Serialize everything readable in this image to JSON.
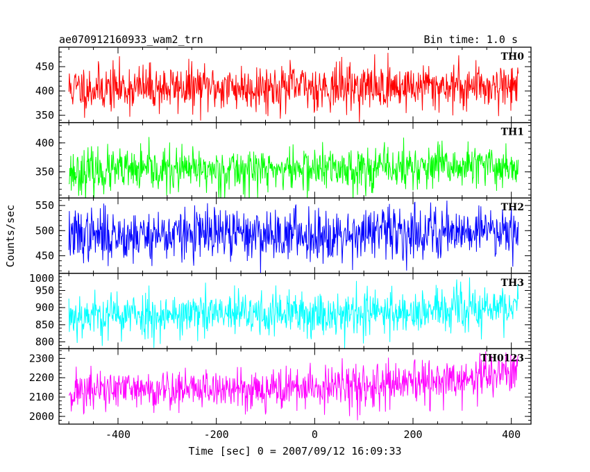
{
  "chart_data": {
    "type": "line",
    "title_left": "ae070912160933_wam2_trn",
    "title_right": "Bin time: 1.0 s",
    "xlabel": "Time [sec] 0 = 2007/09/12 16:09:33",
    "ylabel": "Counts/sec",
    "xlim": [
      -520,
      440
    ],
    "x_range": [
      -500,
      414
    ],
    "x_step": 1.0,
    "x_ticks": [
      -400,
      -200,
      0,
      200,
      400
    ],
    "panels": [
      {
        "name": "TH0",
        "color": "#ff0000",
        "ylim": [
          335,
          490
        ],
        "yticks": [
          350,
          400,
          450
        ],
        "baseline": [
          [
            -500,
            405
          ],
          [
            -400,
            406
          ],
          [
            -200,
            407
          ],
          [
            0,
            408
          ],
          [
            200,
            409
          ],
          [
            414,
            412
          ]
        ],
        "noise": 24,
        "seed": 11
      },
      {
        "name": "TH1",
        "color": "#00ff00",
        "ylim": [
          305,
          435
        ],
        "yticks": [
          350,
          400
        ],
        "baseline": [
          [
            -500,
            350
          ],
          [
            -300,
            352
          ],
          [
            0,
            355
          ],
          [
            200,
            357
          ],
          [
            414,
            360
          ]
        ],
        "noise": 19,
        "seed": 23
      },
      {
        "name": "TH2",
        "color": "#0000ff",
        "ylim": [
          415,
          565
        ],
        "yticks": [
          450,
          500,
          550
        ],
        "baseline": [
          [
            -500,
            490
          ],
          [
            -300,
            492
          ],
          [
            0,
            493
          ],
          [
            200,
            497
          ],
          [
            414,
            505
          ]
        ],
        "noise": 26,
        "seed": 37
      },
      {
        "name": "TH3",
        "color": "#00ffff",
        "ylim": [
          780,
          1000
        ],
        "yticks": [
          800,
          850,
          900,
          950,
          1000
        ],
        "baseline": [
          [
            -500,
            878
          ],
          [
            -200,
            880
          ],
          [
            0,
            882
          ],
          [
            200,
            888
          ],
          [
            414,
            900
          ]
        ],
        "noise": 34,
        "seed": 53
      },
      {
        "name": "TH0123",
        "color": "#ff00ff",
        "ylim": [
          1960,
          2350
        ],
        "yticks": [
          2000,
          2100,
          2200,
          2300
        ],
        "baseline": [
          [
            -500,
            2130
          ],
          [
            -300,
            2140
          ],
          [
            0,
            2145
          ],
          [
            200,
            2165
          ],
          [
            300,
            2185
          ],
          [
            414,
            2240
          ]
        ],
        "noise": 55,
        "seed": 71
      }
    ]
  }
}
